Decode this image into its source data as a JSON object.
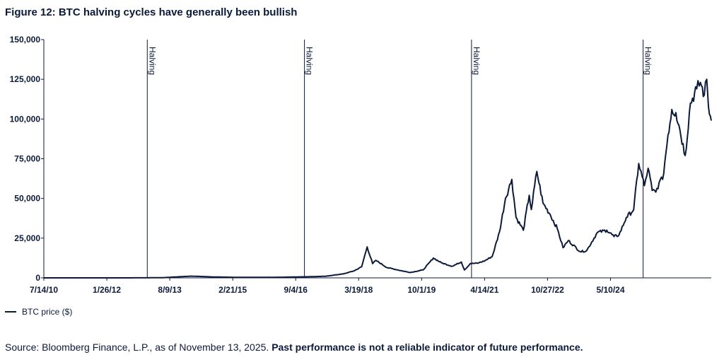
{
  "figure": {
    "title": "Figure 12: BTC halving cycles have generally been bullish",
    "source": "Source: Bloomberg Finance, L.P., as of November 13, 2025.",
    "disclaimer": "Past performance is not a reliable indicator of future performance."
  },
  "chart_data": {
    "type": "line",
    "title": "Figure 12: BTC halving cycles have generally been bullish",
    "xlabel": "",
    "ylabel": "",
    "x_ticks": [
      "7/14/10",
      "1/26/12",
      "8/9/13",
      "2/21/15",
      "9/4/16",
      "3/19/18",
      "10/1/19",
      "4/14/21",
      "10/27/22",
      "5/10/24"
    ],
    "x_range": [
      "2010-07-14",
      "2025-11-13"
    ],
    "ylim": [
      0,
      150000
    ],
    "y_ticks": [
      "0",
      "25,000",
      "50,000",
      "75,000",
      "100,000",
      "125,000",
      "150,000"
    ],
    "y_tick_values": [
      0,
      25000,
      50000,
      75000,
      100000,
      125000,
      150000
    ],
    "legend_position": "bottom-left",
    "grid": false,
    "color": "#0c1a3a",
    "annotations": [
      {
        "label": "Halving",
        "date": "2012-11-28"
      },
      {
        "label": "Halving",
        "date": "2016-07-09"
      },
      {
        "label": "Halving",
        "date": "2020-05-11"
      },
      {
        "label": "Halving",
        "date": "2024-04-20"
      }
    ],
    "series": [
      {
        "name": "BTC price ($)",
        "x": [
          "2010-07-14",
          "2011-06-01",
          "2012-06-01",
          "2013-04-01",
          "2013-12-01",
          "2014-06-01",
          "2015-01-01",
          "2016-01-01",
          "2016-07-01",
          "2017-01-01",
          "2017-06-01",
          "2017-09-01",
          "2017-11-01",
          "2017-12-17",
          "2018-02-01",
          "2018-03-01",
          "2018-06-01",
          "2018-11-01",
          "2018-12-15",
          "2019-04-01",
          "2019-06-26",
          "2019-09-01",
          "2019-12-01",
          "2020-02-15",
          "2020-03-13",
          "2020-05-01",
          "2020-07-01",
          "2020-09-01",
          "2020-11-01",
          "2021-01-01",
          "2021-02-20",
          "2021-04-14",
          "2021-05-20",
          "2021-07-20",
          "2021-09-07",
          "2021-09-25",
          "2021-11-10",
          "2022-01-01",
          "2022-03-01",
          "2022-05-01",
          "2022-06-18",
          "2022-08-01",
          "2022-11-10",
          "2023-01-01",
          "2023-04-01",
          "2023-06-20",
          "2023-08-20",
          "2023-10-01",
          "2023-12-01",
          "2024-02-01",
          "2024-03-14",
          "2024-05-01",
          "2024-06-01",
          "2024-07-05",
          "2024-08-05",
          "2024-09-01",
          "2024-10-01",
          "2024-11-15",
          "2024-12-17",
          "2025-01-20",
          "2025-02-15",
          "2025-04-08",
          "2025-05-22",
          "2025-07-14",
          "2025-08-14",
          "2025-09-15",
          "2025-10-06",
          "2025-10-20",
          "2025-11-13"
        ],
        "values": [
          0,
          20,
          5,
          100,
          1100,
          600,
          300,
          400,
          650,
          1000,
          2500,
          4500,
          7000,
          19500,
          9000,
          11000,
          6500,
          4000,
          3400,
          5000,
          12500,
          9500,
          7300,
          10000,
          5000,
          9000,
          9200,
          10800,
          13500,
          29000,
          50000,
          62000,
          38000,
          30000,
          52000,
          43000,
          67000,
          47000,
          40000,
          31000,
          19000,
          23500,
          16500,
          17000,
          28500,
          30000,
          26000,
          27000,
          38000,
          43000,
          72000,
          58000,
          69000,
          55000,
          54000,
          60000,
          62000,
          90000,
          106000,
          104000,
          96000,
          77000,
          110000,
          119000,
          123000,
          115000,
          125000,
          108000,
          99000
        ]
      }
    ]
  }
}
